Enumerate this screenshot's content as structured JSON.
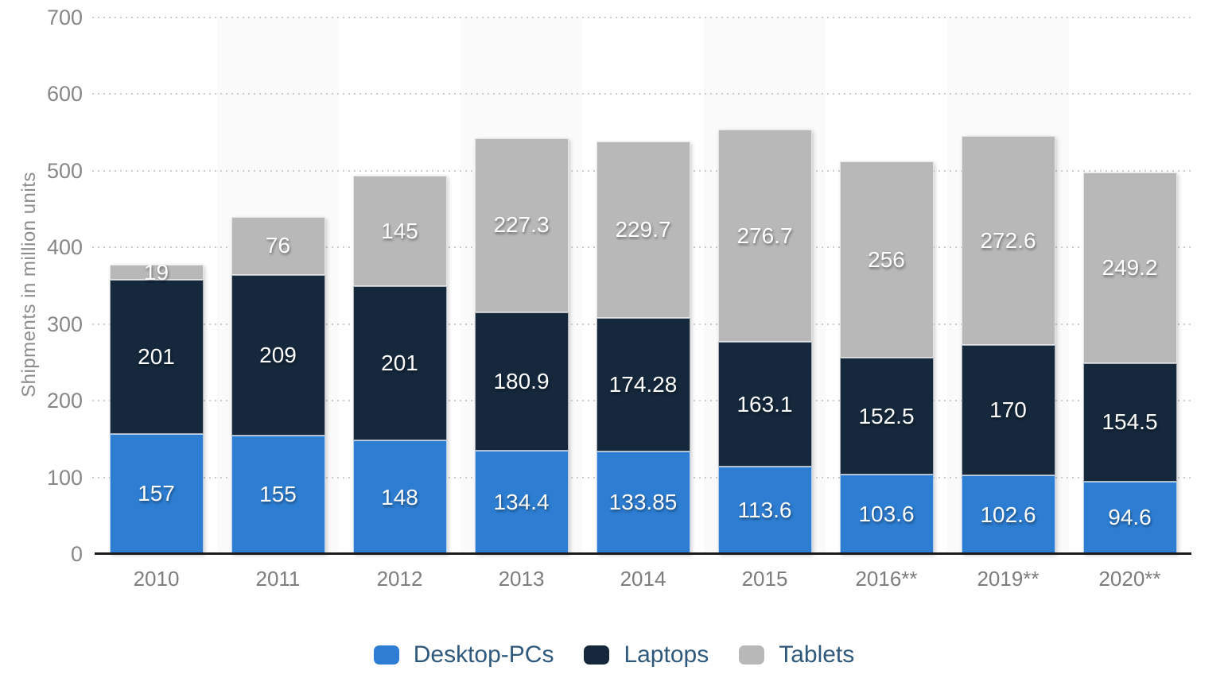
{
  "chart_data": {
    "type": "bar",
    "stacked": true,
    "categories": [
      "2010",
      "2011",
      "2012",
      "2013",
      "2014",
      "2015",
      "2016**",
      "2019**",
      "2020**"
    ],
    "series": [
      {
        "name": "Desktop-PCs",
        "color": "#2d7dd2",
        "values": [
          157,
          155,
          148,
          134.4,
          133.85,
          113.6,
          103.6,
          102.6,
          94.6
        ]
      },
      {
        "name": "Laptops",
        "color": "#15283c",
        "values": [
          201,
          209,
          201,
          180.9,
          174.28,
          163.1,
          152.5,
          170,
          154.5
        ]
      },
      {
        "name": "Tablets",
        "color": "#b8b8b8",
        "values": [
          19,
          76,
          145,
          227.3,
          229.7,
          276.7,
          256,
          272.6,
          249.2
        ]
      }
    ],
    "title": "",
    "xlabel": "",
    "ylabel": "Shipments in million units",
    "ylim": [
      0,
      700
    ],
    "yticks": [
      0,
      100,
      200,
      300,
      400,
      500,
      600,
      700
    ],
    "grid": "horizontal-dotted",
    "legend_position": "bottom",
    "style": {
      "band_color": "#fafafa",
      "grid_color": "#cccccc",
      "axis_line_color": "#1b1b1b",
      "tick_text_color": "#878787",
      "category_text_color": "#7d7d7d",
      "ylabel_color": "#8c8c8c",
      "legend_text_color": "#2e587c",
      "bar_label_color": "#ffffff"
    }
  }
}
